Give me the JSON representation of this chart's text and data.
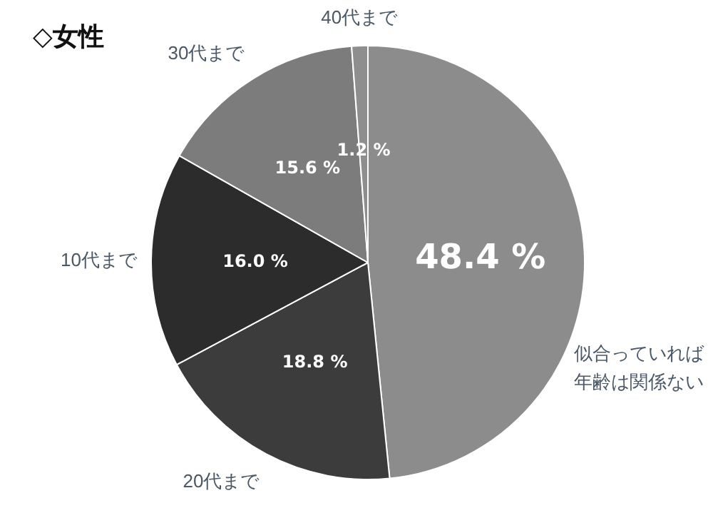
{
  "chart_data": {
    "type": "pie",
    "title": "◇女性",
    "categories": [
      "似合っていれば年齢は関係ない",
      "20代まで",
      "10代まで",
      "30代まで",
      "40代まで"
    ],
    "values": [
      48.4,
      18.8,
      16.0,
      15.6,
      1.2
    ],
    "value_labels": [
      "48.4 %",
      "18.8 %",
      "16.0 %",
      "15.6 %",
      "1.2 %"
    ],
    "colors": [
      "#8c8c8c",
      "#3c3c3c",
      "#2c2c2c",
      "#7c7c7c",
      "#8e8e8e"
    ],
    "legend": false
  }
}
